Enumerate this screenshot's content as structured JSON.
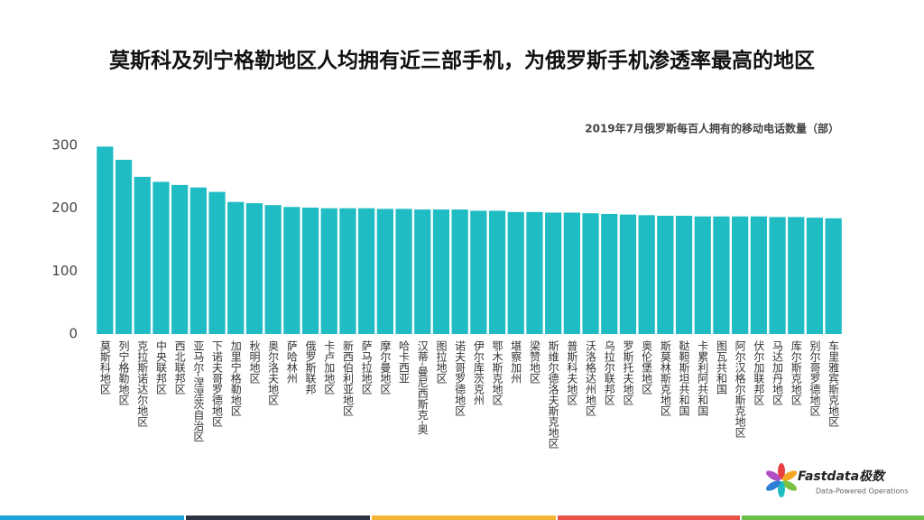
{
  "chart_data": {
    "type": "bar",
    "title": "莫斯科及列宁格勒地区人均拥有近三部手机，为俄罗斯手机渗透率最高的地区",
    "subtitle": "2019年7月俄罗斯每百人拥有的移动电话数量（部）",
    "categories": [
      "莫斯科地区",
      "列宁格勒地区",
      "克拉斯诺达尔地区",
      "中央联邦区",
      "西北联邦区",
      "亚马尔-涅涅茨自治区",
      "下诺夫哥罗德地区",
      "加里宁格勒地区",
      "秋明地区",
      "奥尔洛夫地区",
      "萨哈林州",
      "俄罗斯联邦",
      "卡卢加地区",
      "新西伯利亚地区",
      "萨马拉地区",
      "摩尔曼地区",
      "哈卡西亚",
      "汉蒂-曼尼西斯克-奥",
      "图拉地区",
      "诺夫哥罗德地区",
      "伊尔库茨克州",
      "鄂木斯克地区",
      "堪察加州",
      "梁赞地区",
      "斯维尔德洛夫斯克地区",
      "普斯科夫地区",
      "沃洛格达州地区",
      "乌拉尔联邦区",
      "罗斯托夫地区",
      "奥伦堡地区",
      "斯莫林斯克地区",
      "鞑靼斯坦共和国",
      "卡累利阿共和国",
      "图瓦共和国",
      "阿尔汉格尔斯克地区",
      "伏尔加联邦区",
      "马达加丹地区",
      "库尔斯克地区",
      "别尔哥罗德地区",
      "车里雅宾斯克地区"
    ],
    "values": [
      298,
      277,
      250,
      242,
      237,
      233,
      226,
      210,
      208,
      205,
      202,
      201,
      200,
      200,
      200,
      199,
      199,
      198,
      198,
      198,
      196,
      196,
      194,
      194,
      193,
      193,
      192,
      191,
      190,
      189,
      188,
      188,
      187,
      187,
      187,
      187,
      186,
      186,
      185,
      184
    ],
    "color": "#1fbcc4",
    "ylim": [
      0,
      300
    ],
    "yticks": [
      0,
      100,
      200,
      300
    ],
    "grid": false
  },
  "logo": {
    "name": "Fastdata极数",
    "tagline": "Data-Powered Operations"
  }
}
